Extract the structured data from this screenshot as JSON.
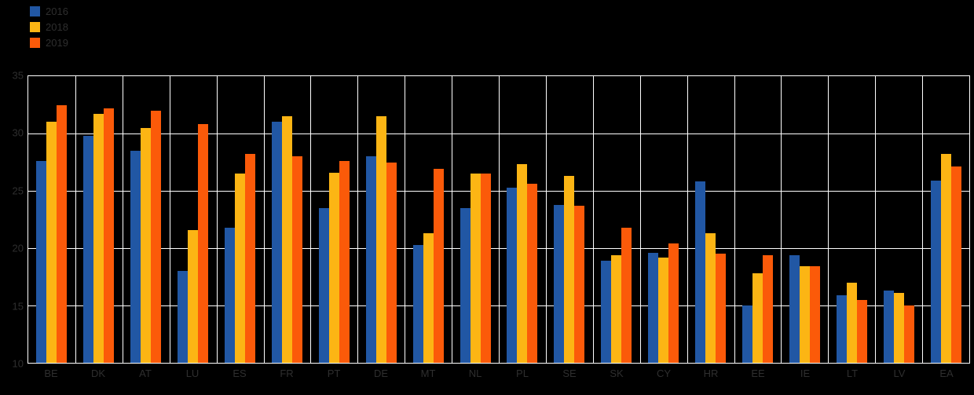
{
  "chart_data": {
    "type": "bar",
    "title": "",
    "xlabel": "",
    "ylabel": "",
    "ylim": [
      10,
      35
    ],
    "yticks": [
      10,
      15,
      20,
      25,
      30,
      35
    ],
    "grid": true,
    "legend_position": "top-left",
    "background_color": "#000000",
    "gridline_color": "#ffffff",
    "text_color": "#2e2e2e",
    "categories": [
      "BE",
      "DK",
      "AT",
      "LU",
      "ES",
      "FR",
      "PT",
      "DE",
      "MT",
      "NL",
      "PL",
      "SE",
      "SK",
      "CY",
      "HR",
      "EE",
      "IE",
      "LT",
      "LV",
      "EA"
    ],
    "series": [
      {
        "name": "2016",
        "color": "#2157a4",
        "values": [
          27.6,
          29.8,
          28.5,
          18.0,
          21.8,
          31.0,
          23.5,
          28.0,
          20.3,
          23.5,
          25.3,
          23.8,
          18.9,
          19.6,
          25.8,
          15.0,
          19.4,
          15.9,
          16.3,
          25.9
        ]
      },
      {
        "name": "2018",
        "color": "#fcb514",
        "values": [
          31.0,
          31.7,
          30.5,
          21.6,
          26.5,
          31.5,
          26.6,
          31.5,
          21.3,
          26.5,
          27.3,
          26.3,
          19.4,
          19.2,
          21.3,
          17.8,
          18.4,
          17.0,
          16.1,
          28.2
        ]
      },
      {
        "name": "2019",
        "color": "#fb5a09",
        "values": [
          32.5,
          32.2,
          32.0,
          30.8,
          28.2,
          28.0,
          27.6,
          27.5,
          26.9,
          26.5,
          25.6,
          23.7,
          21.8,
          20.4,
          19.5,
          19.4,
          18.4,
          15.5,
          15.0,
          27.1
        ]
      }
    ]
  }
}
